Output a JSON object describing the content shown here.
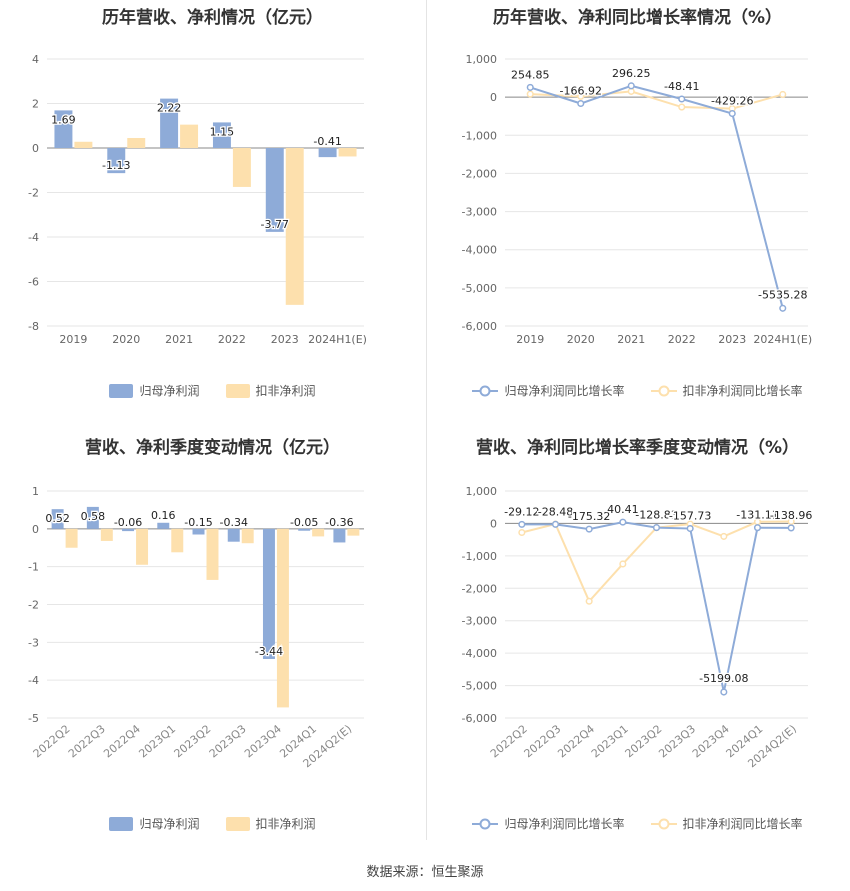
{
  "source_text": "数据来源：恒生聚源",
  "colors": {
    "series1": "#8eabd8",
    "series2": "#fde0ad",
    "grid": "#e6e6e6",
    "axis": "#999999",
    "text": "#666666"
  },
  "chart_data": [
    {
      "type": "bar",
      "title": "历年营收、净利情况（亿元）",
      "categories": [
        "2019",
        "2020",
        "2021",
        "2022",
        "2023",
        "2024H1(E)"
      ],
      "ylim": [
        -8,
        4
      ],
      "yticks": [
        4,
        2,
        0,
        -2,
        -4,
        -6,
        -8
      ],
      "grid": true,
      "legend_position": "bottom",
      "series": [
        {
          "name": "归母净利润",
          "values": [
            1.69,
            -1.13,
            2.22,
            1.15,
            -3.77,
            -0.41
          ],
          "show_labels": true
        },
        {
          "name": "扣非净利润",
          "values": [
            0.28,
            0.45,
            1.05,
            -1.75,
            -7.05,
            -0.38
          ],
          "show_labels": false
        }
      ]
    },
    {
      "type": "line",
      "title": "历年营收、净利同比增长率情况（%）",
      "categories": [
        "2019",
        "2020",
        "2021",
        "2022",
        "2023",
        "2024H1(E)"
      ],
      "ylim": [
        -6000,
        1000
      ],
      "yticks": [
        1000,
        0,
        -1000,
        -2000,
        -3000,
        -4000,
        -5000,
        -6000
      ],
      "ytick_labels": [
        "1,000",
        "0",
        "-1,000",
        "-2,000",
        "-3,000",
        "-4,000",
        "-5,000",
        "-6,000"
      ],
      "grid": true,
      "legend_position": "bottom",
      "series": [
        {
          "name": "归母净利润同比增长率",
          "values": [
            254.85,
            -166.92,
            296.25,
            -48.41,
            -429.26,
            -5535.28
          ],
          "show_labels": true
        },
        {
          "name": "扣非净利润同比增长率",
          "values": [
            80,
            20,
            150,
            -260,
            -300,
            70
          ],
          "show_labels": false
        }
      ]
    },
    {
      "type": "bar",
      "title": "营收、净利季度变动情况（亿元）",
      "categories": [
        "2022Q2",
        "2022Q3",
        "2022Q4",
        "2023Q1",
        "2023Q2",
        "2023Q3",
        "2023Q4",
        "2024Q1",
        "2024Q2(E)"
      ],
      "ylim": [
        -5,
        1
      ],
      "yticks": [
        1,
        0,
        -1,
        -2,
        -3,
        -4,
        -5
      ],
      "grid": true,
      "legend_position": "bottom",
      "series": [
        {
          "name": "归母净利润",
          "values": [
            0.52,
            0.58,
            -0.06,
            0.16,
            -0.15,
            -0.34,
            -3.44,
            -0.05,
            -0.36
          ],
          "show_labels": true
        },
        {
          "name": "扣非净利润",
          "values": [
            -0.5,
            -0.32,
            -0.95,
            -0.62,
            -1.35,
            -0.38,
            -4.72,
            -0.2,
            -0.18
          ],
          "show_labels": false
        }
      ]
    },
    {
      "type": "line",
      "title": "营收、净利同比增长率季度变动情况（%）",
      "categories": [
        "2022Q2",
        "2022Q3",
        "2022Q4",
        "2023Q1",
        "2023Q2",
        "2023Q3",
        "2023Q4",
        "2024Q1",
        "2024Q2(E)"
      ],
      "ylim": [
        -6000,
        1000
      ],
      "yticks": [
        1000,
        0,
        -1000,
        -2000,
        -3000,
        -4000,
        -5000,
        -6000
      ],
      "ytick_labels": [
        "1,000",
        "0",
        "-1,000",
        "-2,000",
        "-3,000",
        "-4,000",
        "-5,000",
        "-6,000"
      ],
      "grid": true,
      "legend_position": "bottom",
      "series": [
        {
          "name": "归母净利润同比增长率",
          "values": [
            -29.12,
            -28.48,
            -175.32,
            40.41,
            -128.83,
            -157.73,
            -5199.08,
            -131.11,
            -138.96
          ],
          "show_labels": true
        },
        {
          "name": "扣非净利润同比增长率",
          "values": [
            -280,
            -20,
            -2400,
            -1250,
            -130,
            -20,
            -400,
            50,
            60
          ],
          "show_labels": false
        }
      ]
    }
  ]
}
